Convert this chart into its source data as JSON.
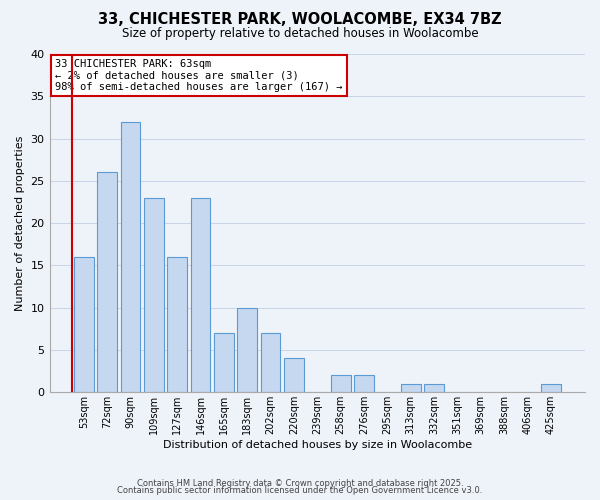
{
  "title": "33, CHICHESTER PARK, WOOLACOMBE, EX34 7BZ",
  "subtitle": "Size of property relative to detached houses in Woolacombe",
  "xlabel": "Distribution of detached houses by size in Woolacombe",
  "ylabel": "Number of detached properties",
  "categories": [
    "53sqm",
    "72sqm",
    "90sqm",
    "109sqm",
    "127sqm",
    "146sqm",
    "165sqm",
    "183sqm",
    "202sqm",
    "220sqm",
    "239sqm",
    "258sqm",
    "276sqm",
    "295sqm",
    "313sqm",
    "332sqm",
    "351sqm",
    "369sqm",
    "388sqm",
    "406sqm",
    "425sqm"
  ],
  "values": [
    16,
    26,
    32,
    23,
    16,
    23,
    7,
    10,
    7,
    4,
    0,
    2,
    2,
    0,
    1,
    1,
    0,
    0,
    0,
    0,
    1
  ],
  "bar_color": "#c5d8f0",
  "bar_edge_color": "#5b9bd5",
  "ylim": [
    0,
    40
  ],
  "yticks": [
    0,
    5,
    10,
    15,
    20,
    25,
    30,
    35,
    40
  ],
  "grid_color": "#c8d4e8",
  "background_color": "#eef2f9",
  "annotation_title": "33 CHICHESTER PARK: 63sqm",
  "annotation_line1": "← 2% of detached houses are smaller (3)",
  "annotation_line2": "98% of semi-detached houses are larger (167) →",
  "annotation_box_color": "#ffffff",
  "annotation_border_color": "#cc0000",
  "footer1": "Contains HM Land Registry data © Crown copyright and database right 2025.",
  "footer2": "Contains public sector information licensed under the Open Government Licence v3.0."
}
